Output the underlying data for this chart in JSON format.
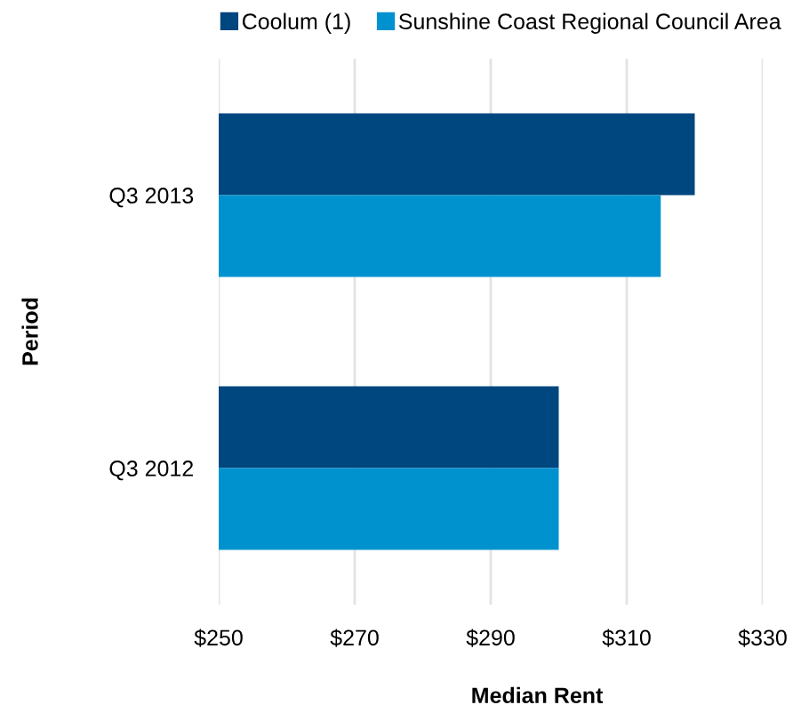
{
  "chart_data": {
    "type": "bar",
    "orientation": "horizontal",
    "xlabel": "Median Rent",
    "ylabel": "Period",
    "categories": [
      "Q3 2013",
      "Q3 2012"
    ],
    "series": [
      {
        "name": "Coolum (1)",
        "color": "#00467f",
        "values": [
          320,
          300
        ]
      },
      {
        "name": "Sunshine Coast Regional Council Area",
        "color": "#0092cf",
        "values": [
          315,
          300
        ]
      }
    ],
    "xlim": [
      250,
      330
    ],
    "xticks": [
      {
        "value": 250,
        "label": "$250"
      },
      {
        "value": 270,
        "label": "$270"
      },
      {
        "value": 290,
        "label": "$290"
      },
      {
        "value": 310,
        "label": "$310"
      },
      {
        "value": 330,
        "label": "$330"
      }
    ],
    "grid": "x",
    "legend": "top"
  }
}
